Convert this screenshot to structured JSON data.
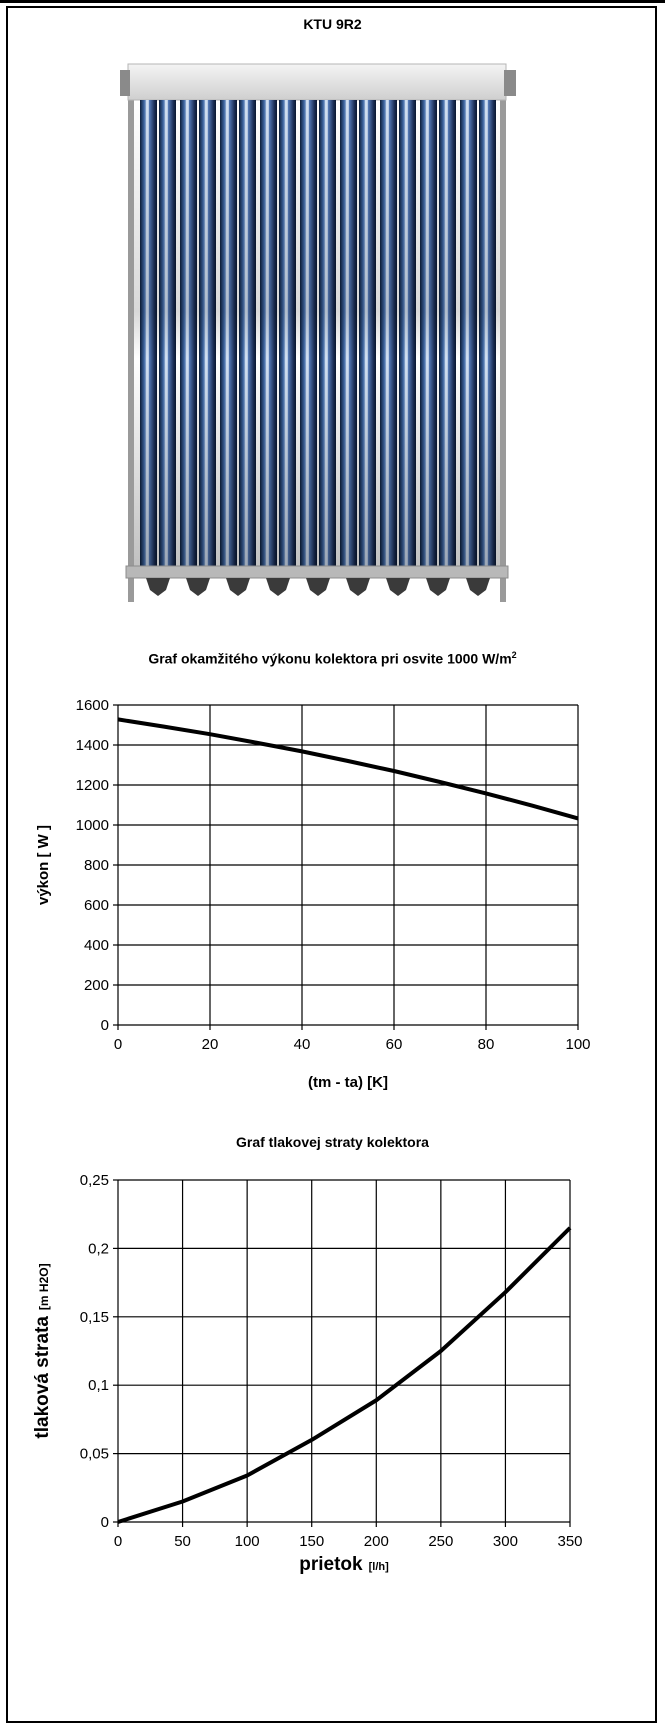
{
  "header": {
    "model": "KTU 9R2"
  },
  "photo": {
    "icon": "solar-vacuum-tube-collector-photo"
  },
  "chart_data": [
    {
      "type": "line",
      "title": "Graf okamžitého výkonu kolektora pri osvite 1000 W/m",
      "title_superscript": "2",
      "xlabel": "(tm - ta) [K]",
      "ylabel": "výkon [ W ]",
      "xlim": [
        0,
        100
      ],
      "ylim": [
        0,
        1600
      ],
      "x_ticks": [
        "0",
        "20",
        "40",
        "60",
        "80",
        "100"
      ],
      "y_ticks": [
        "0",
        "200",
        "400",
        "600",
        "800",
        "1000",
        "1200",
        "1400",
        "1600"
      ],
      "grid": true,
      "x": [
        0,
        10,
        20,
        30,
        40,
        50,
        60,
        70,
        80,
        90,
        100
      ],
      "series": [
        {
          "values": [
            1528,
            1492,
            1454,
            1412,
            1368,
            1320,
            1270,
            1215,
            1158,
            1097,
            1033
          ],
          "color": "#000000"
        }
      ]
    },
    {
      "type": "line",
      "title": "Graf tlakovej straty kolektora",
      "xlabel": "prietok",
      "xlabel_unit": "[l/h]",
      "ylabel": "tlaková strata",
      "ylabel_unit": "[m H2O]",
      "xlim": [
        0,
        350
      ],
      "ylim": [
        0,
        0.25
      ],
      "x_ticks": [
        "0",
        "50",
        "100",
        "150",
        "200",
        "250",
        "300",
        "350"
      ],
      "y_ticks": [
        "0",
        "0,05",
        "0,1",
        "0,15",
        "0,2",
        "0,25"
      ],
      "grid": true,
      "x": [
        0,
        50,
        100,
        150,
        200,
        250,
        300,
        350
      ],
      "series": [
        {
          "values": [
            0,
            0.015,
            0.034,
            0.06,
            0.089,
            0.125,
            0.168,
            0.215
          ],
          "color": "#000000"
        }
      ]
    }
  ]
}
